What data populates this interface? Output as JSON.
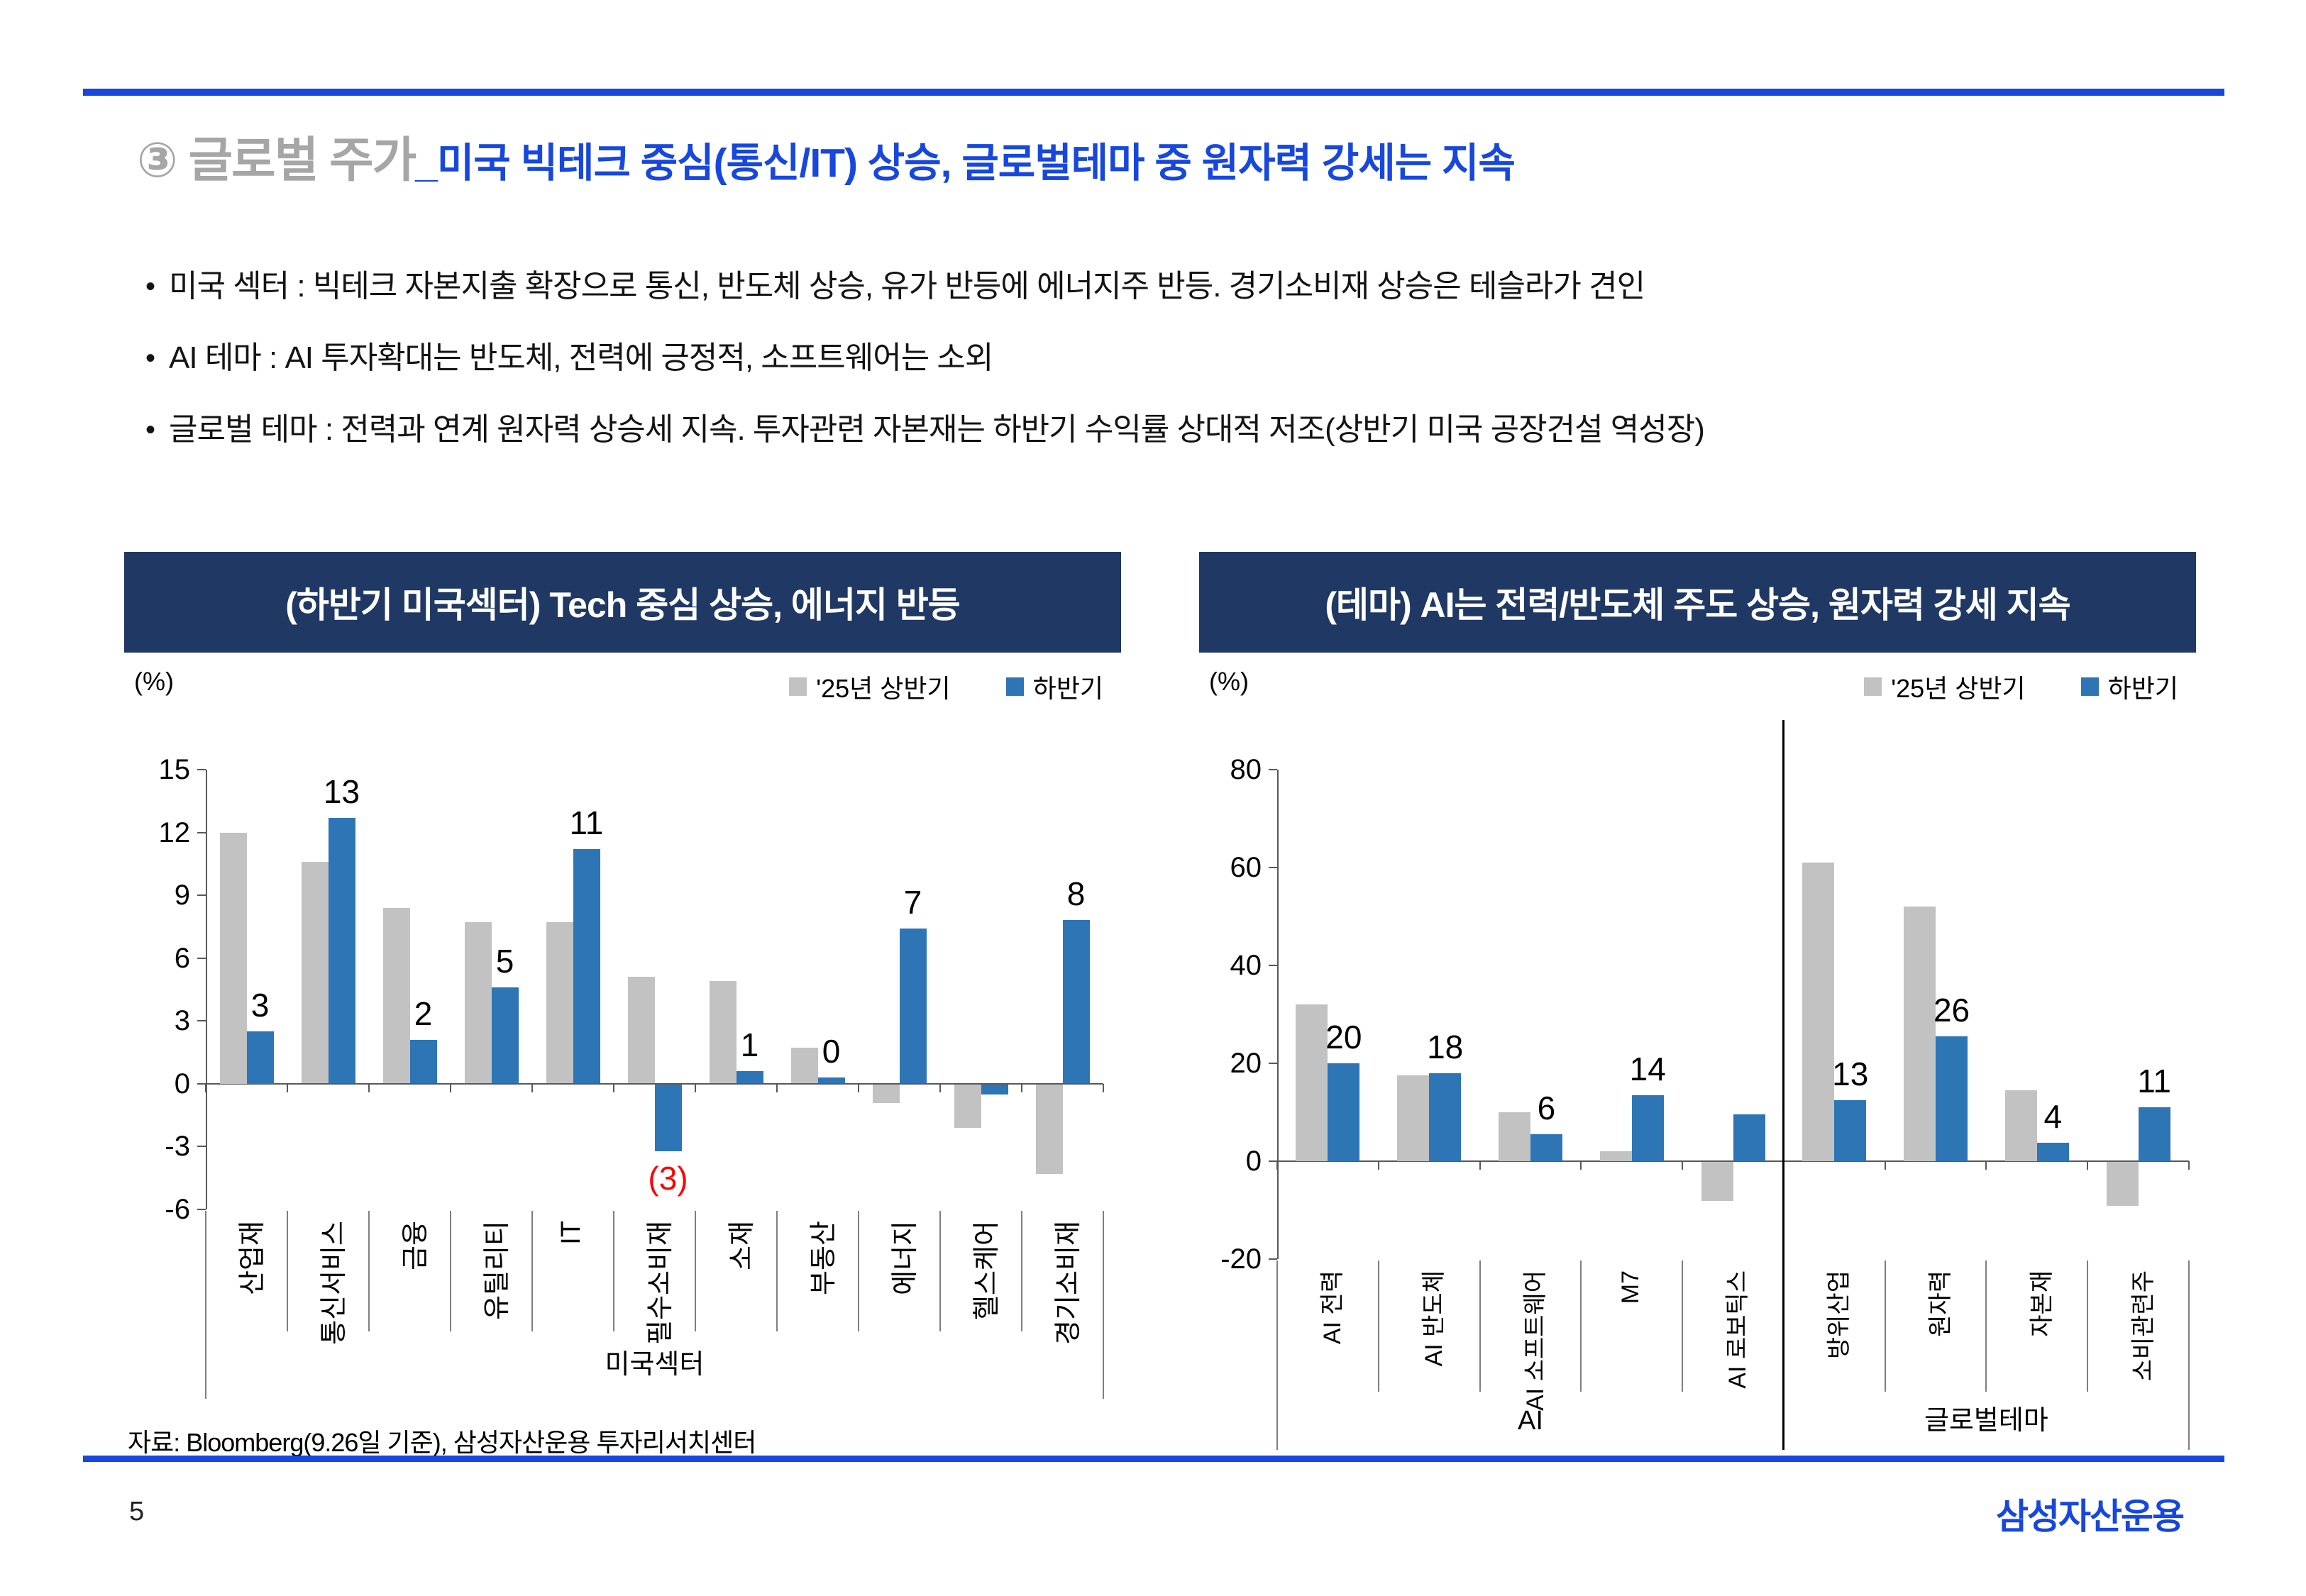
{
  "page": {
    "number": "5",
    "logo": "삼성자산운용",
    "bullet_char": "•",
    "accent_color": "#1747DD",
    "header_box_color": "#1F3864"
  },
  "header": {
    "title_prefix": "③ 글로벌 주가",
    "title_main": "_미국 빅테크 중심(통신/IT) 상승, 글로벌테마 중 원자력 강세는 지속"
  },
  "bullets": [
    "미국 섹터 : 빅테크 자본지출 확장으로 통신, 반도체 상승, 유가 반등에 에너지주 반등. 경기소비재 상승은 테슬라가 견인",
    "AI 테마 : AI 투자확대는 반도체, 전력에 긍정적, 소프트웨어는 소외",
    "글로벌 테마 : 전력과 연계 원자력 상승세 지속. 투자관련 자본재는 하반기 수익률 상대적 저조(상반기 미국 공장건설 역성장)"
  ],
  "footer": {
    "source": "자료: Bloomberg(9.26일 기준), 삼성자산운용 투자리서치센터"
  },
  "chart_data": [
    {
      "type": "bar",
      "title": "(하반기 미국섹터) Tech 중심 상승, 에너지 반등",
      "unit_label": "(%)",
      "categories": [
        "산업재",
        "통신서비스",
        "금융",
        "유틸리티",
        "IT",
        "필수소비재",
        "소재",
        "부동산",
        "에너지",
        "헬스케어",
        "경기소비재"
      ],
      "group_labels": [
        {
          "label": "미국섹터",
          "span": [
            0,
            10
          ]
        }
      ],
      "series": [
        {
          "name": "'25년 상반기",
          "color": "#C2C2C2",
          "values": [
            12,
            10.6,
            8.4,
            7.7,
            7.7,
            5.1,
            4.9,
            1.7,
            -0.9,
            -2.1,
            -4.3
          ]
        },
        {
          "name": "하반기",
          "color": "#2E75B6",
          "values": [
            2.5,
            12.7,
            2.1,
            4.6,
            11.2,
            -3.2,
            0.6,
            0.3,
            7.4,
            -0.5,
            7.8
          ]
        }
      ],
      "data_labels": [
        "3",
        "13",
        "2",
        "5",
        "11",
        "(3)",
        "1",
        "0",
        "7",
        "",
        "8"
      ],
      "negative_label_color": "#FF0000",
      "ylim": [
        -6,
        15
      ],
      "yticks": [
        15,
        12,
        9,
        6,
        3,
        0,
        -3,
        -6
      ],
      "legend_position": "top-right",
      "grid": false
    },
    {
      "type": "bar",
      "title": "(테마) AI는 전력/반도체 주도 상승, 원자력 강세 지속",
      "unit_label": "(%)",
      "categories": [
        "AI 전력",
        "AI 반도체",
        "AI 소프트웨어",
        "M7",
        "AI 로보틱스",
        "방위산업",
        "원자력",
        "자본재",
        "소비관련주"
      ],
      "group_labels": [
        {
          "label": "AI",
          "span": [
            0,
            4
          ]
        },
        {
          "label": "글로벌테마",
          "span": [
            5,
            8
          ]
        }
      ],
      "divider_after_category": 4,
      "series": [
        {
          "name": "'25년 상반기",
          "color": "#C2C2C2",
          "values": [
            32,
            17.5,
            10,
            2,
            -8,
            61,
            52,
            14.5,
            -9
          ]
        },
        {
          "name": "하반기",
          "color": "#2E75B6",
          "values": [
            20,
            18,
            5.5,
            13.5,
            9.5,
            12.5,
            25.5,
            3.8,
            11
          ]
        }
      ],
      "data_labels": [
        "20",
        "18",
        "6",
        "14",
        "",
        "13",
        "26",
        "4",
        "11"
      ],
      "negative_label_color": "#FF0000",
      "ylim": [
        -20,
        80
      ],
      "yticks": [
        80,
        60,
        40,
        20,
        0,
        -20
      ],
      "legend_position": "top-right",
      "grid": false
    }
  ]
}
